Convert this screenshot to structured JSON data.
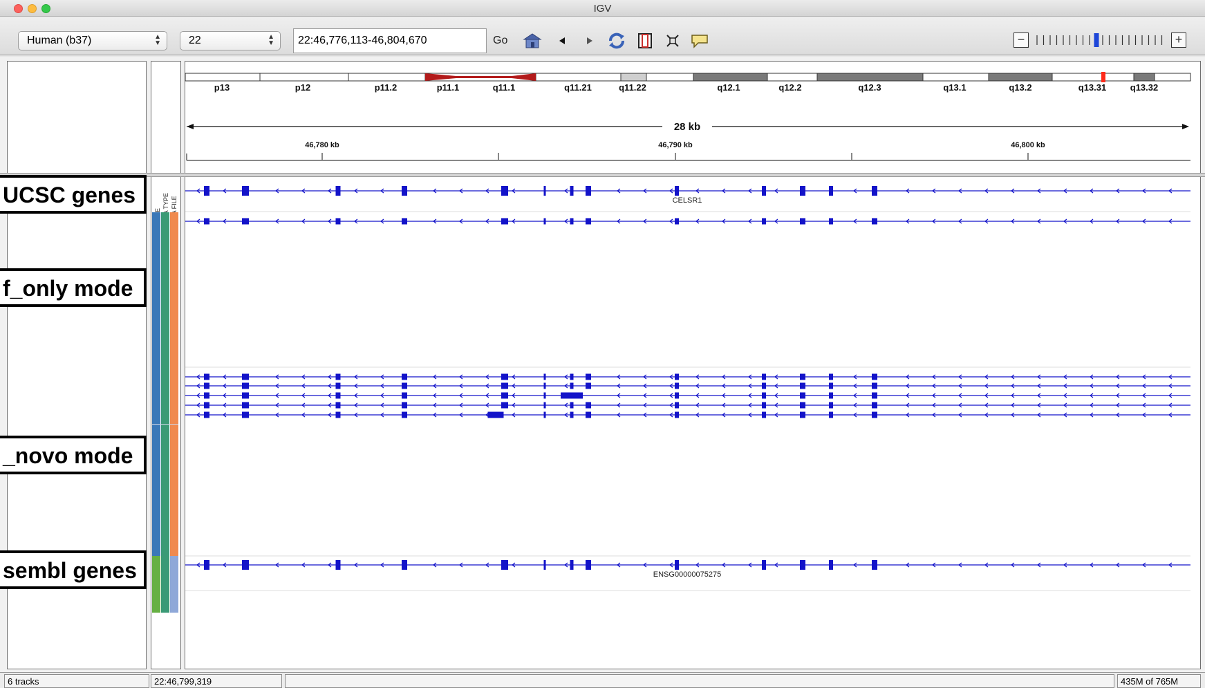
{
  "window": {
    "title": "IGV"
  },
  "toolbar": {
    "genome": "Human (b37)",
    "chromosome": "22",
    "locus": "22:46,776,113-46,804,670",
    "go_label": "Go",
    "icons": [
      "home-icon",
      "back-icon",
      "forward-icon",
      "refresh-icon",
      "region-of-interest-icon",
      "fit-to-window-icon",
      "popup-info-icon"
    ],
    "zoom_out_label": "−",
    "zoom_in_label": "+",
    "zoom_level": 0.45
  },
  "ideogram": {
    "bands": [
      "p13",
      "p12",
      "p11.2",
      "p11.1",
      "q11.1",
      "q11.21",
      "q11.22",
      "q12.1",
      "q12.2",
      "q12.3",
      "q13.1",
      "q13.2",
      "q13.31",
      "q13.32"
    ]
  },
  "ruler": {
    "span_label": "28 kb",
    "ticks": [
      "46,780 kb",
      "46,790 kb",
      "46,800 kb"
    ]
  },
  "attribute_header": [
    "NAME",
    "DATA TYPE",
    "DATA FILE"
  ],
  "colors": {
    "feature": "#1313c9",
    "attr_blue": "#3a78b8",
    "attr_teal": "#3a9a76",
    "attr_orange": "#f08a4e",
    "attr_green": "#66b043",
    "attr_lavender": "#8fa8d8",
    "centromere": "#b31b1b"
  },
  "tracks": [
    {
      "label": "UCSC genes",
      "gene": "CELSR1"
    },
    {
      "label": "f_only mode"
    },
    {
      "label": "_novo mode"
    },
    {
      "label": "sembl genes",
      "gene": "ENSG00000075275"
    }
  ],
  "status": {
    "tracks": "6 tracks",
    "position": "22:46,799,319",
    "memory": "435M of 765M"
  }
}
